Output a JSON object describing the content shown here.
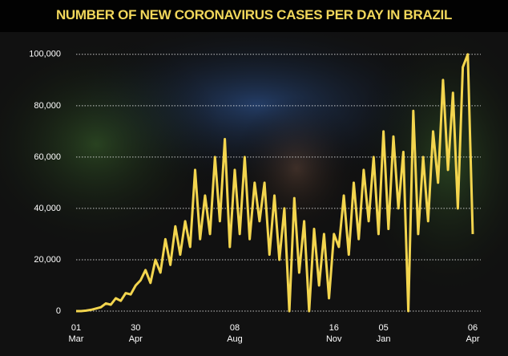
{
  "chart_data": {
    "type": "line",
    "title": "NUMBER OF NEW CORONAVIRUS CASES PER DAY IN BRAZIL",
    "categories": [
      "01 Mar",
      null,
      null,
      null,
      null,
      null,
      null,
      null,
      null,
      null,
      null,
      null,
      "30 Apr",
      null,
      null,
      null,
      null,
      null,
      null,
      null,
      null,
      null,
      null,
      null,
      null,
      null,
      null,
      null,
      null,
      null,
      null,
      null,
      "08 Aug",
      null,
      null,
      null,
      null,
      null,
      null,
      null,
      null,
      null,
      null,
      null,
      null,
      null,
      null,
      null,
      null,
      null,
      null,
      null,
      "16 Nov",
      null,
      null,
      null,
      null,
      null,
      null,
      null,
      null,
      null,
      "05 Jan",
      null,
      null,
      null,
      null,
      null,
      null,
      null,
      null,
      null,
      null,
      null,
      null,
      null,
      null,
      null,
      null,
      null,
      "06 Apr"
    ],
    "values": [
      0,
      0,
      200,
      500,
      1000,
      1500,
      3000,
      2500,
      5000,
      4000,
      7000,
      6500,
      10000,
      12000,
      16000,
      11000,
      20000,
      15000,
      28000,
      18000,
      33000,
      22000,
      35000,
      25000,
      55000,
      28000,
      45000,
      30000,
      60000,
      35000,
      67000,
      25000,
      55000,
      30000,
      60000,
      28000,
      50000,
      35000,
      50000,
      22000,
      45000,
      20000,
      40000,
      0,
      44000,
      15000,
      35000,
      0,
      32000,
      10000,
      30000,
      5000,
      30000,
      25000,
      45000,
      22000,
      50000,
      28000,
      55000,
      35000,
      60000,
      30000,
      70000,
      32000,
      68000,
      40000,
      62000,
      0,
      78000,
      30000,
      60000,
      35000,
      70000,
      50000,
      90000,
      55000,
      85000,
      40000,
      95000,
      100000,
      30000
    ],
    "color": "#f3d54e",
    "ylim": [
      0,
      104000
    ],
    "yticks": [
      0,
      {
        "value": 20000,
        "label": "20,000"
      },
      {
        "value": 40000,
        "label": "40,000"
      },
      {
        "value": 60000,
        "label": "60,000"
      },
      {
        "value": 80000,
        "label": "80,000"
      },
      {
        "value": 100000,
        "label": "100,000"
      }
    ],
    "grid": true
  }
}
